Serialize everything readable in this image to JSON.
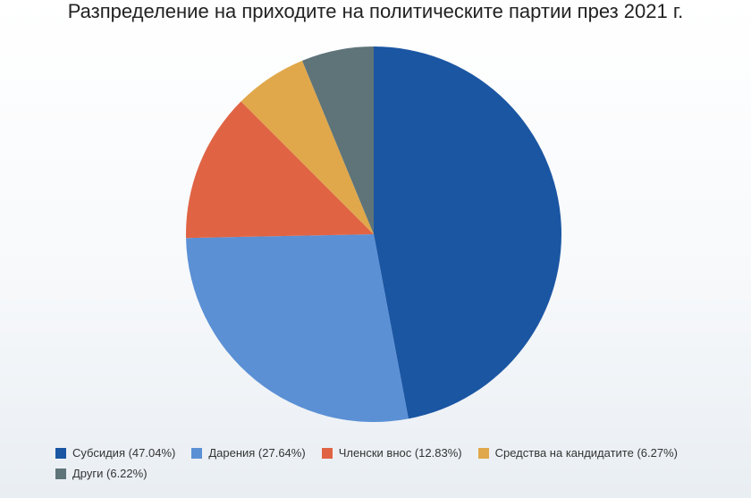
{
  "chart_data": {
    "type": "pie",
    "title": "Разпределение на приходите на политическите партии през 2021 г.",
    "categories": [
      "Субсидия (47.04%)",
      "Дарения (27.64%)",
      "Членски внос (12.83%)",
      "Средства на кандидатите (6.27%)",
      "Други (6.22%)"
    ],
    "values": [
      47.04,
      27.64,
      12.83,
      6.27,
      6.22
    ],
    "colors": [
      "#1b56a3",
      "#5b90d5",
      "#e06444",
      "#e0a84b",
      "#5e7479"
    ],
    "legend": "bottom"
  }
}
